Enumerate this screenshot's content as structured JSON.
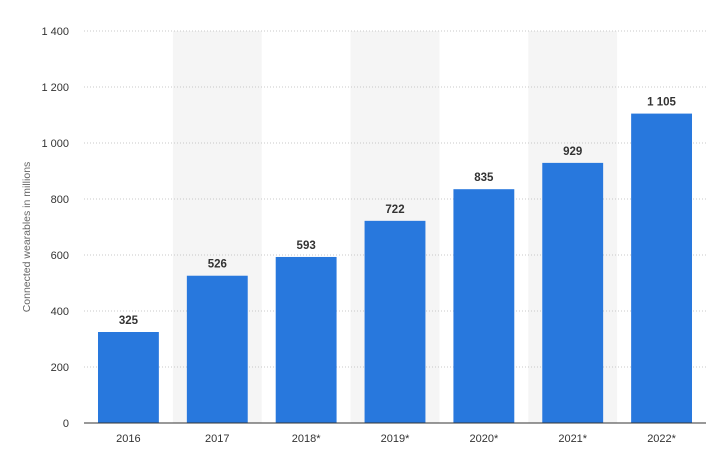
{
  "chart_data": {
    "type": "bar",
    "categories": [
      "2016",
      "2017",
      "2018*",
      "2019*",
      "2020*",
      "2021*",
      "2022*"
    ],
    "values": [
      325,
      526,
      593,
      722,
      835,
      929,
      1105
    ],
    "value_labels": [
      "325",
      "526",
      "593",
      "722",
      "835",
      "929",
      "1 105"
    ],
    "ylabel": "Connected wearables in millions",
    "ylim": [
      0,
      1400
    ],
    "yticks": [
      0,
      200,
      400,
      600,
      800,
      1000,
      1200,
      1400
    ],
    "ytick_labels": [
      "0",
      "200",
      "400",
      "600",
      "800",
      "1 000",
      "1 200",
      "1 400"
    ],
    "grid": true,
    "colors": {
      "bar": "#2878dd",
      "grid": "#c8c8c8",
      "band": "#f5f5f5",
      "axis": "#333333"
    }
  }
}
